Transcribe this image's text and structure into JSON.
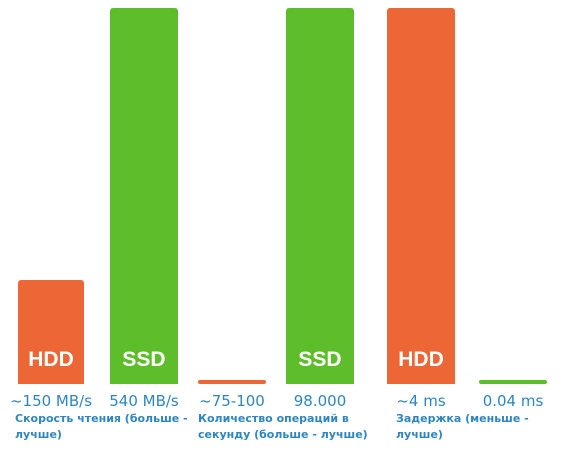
{
  "chart_data": {
    "type": "bar",
    "groups": [
      {
        "category": "Скорость чтения (больше - лучше)",
        "bars": [
          {
            "label": "HDD",
            "value_text": "~150 MB/s",
            "value": 150,
            "color": "#ec6735"
          },
          {
            "label": "SSD",
            "value_text": "540 MB/s",
            "value": 540,
            "color": "#5ebd2b"
          }
        ]
      },
      {
        "category": "Количество операций в секунду (больше - лучше)",
        "bars": [
          {
            "label": "",
            "value_text": "~75-100",
            "value": 100,
            "color": "#ec6735"
          },
          {
            "label": "SSD",
            "value_text": "98.000",
            "value": 98000,
            "color": "#5ebd2b"
          }
        ]
      },
      {
        "category": "Задержка (меньше - лучше)",
        "bars": [
          {
            "label": "HDD",
            "value_text": "~4 ms",
            "value": 4,
            "color": "#ec6735"
          },
          {
            "label": "",
            "value_text": "0.04 ms",
            "value": 0.04,
            "color": "#5ebd2b"
          }
        ]
      }
    ]
  }
}
